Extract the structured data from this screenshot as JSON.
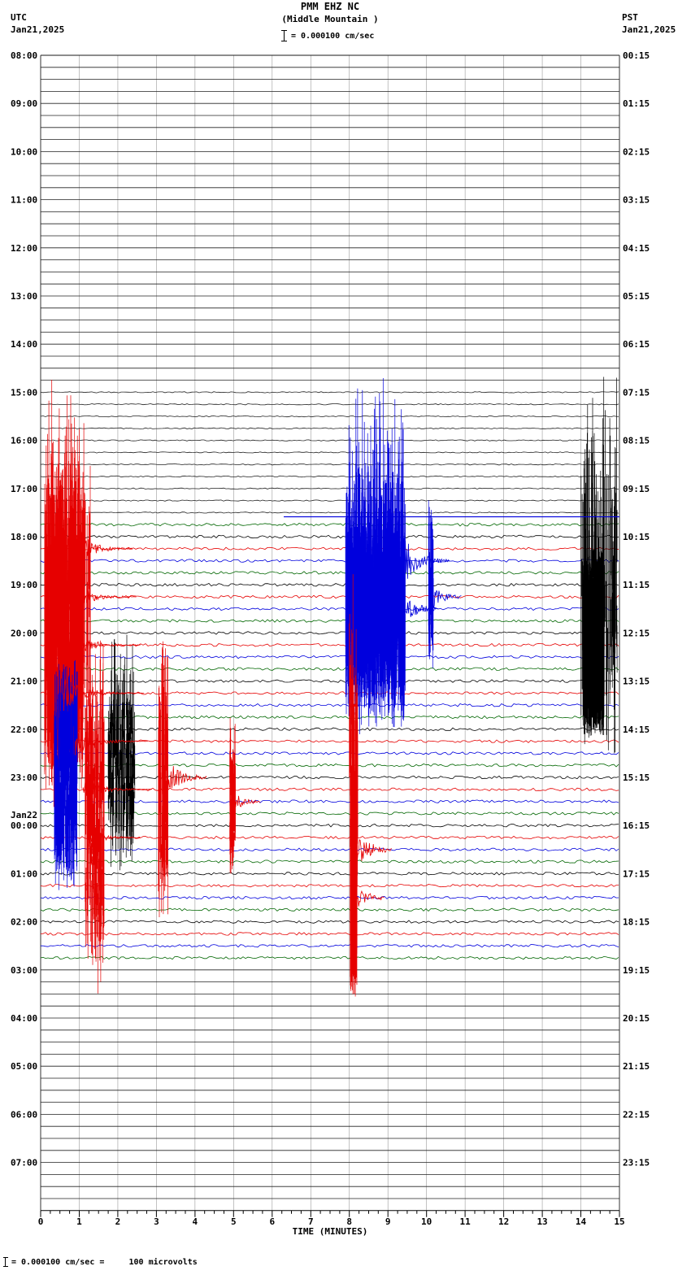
{
  "header": {
    "title": "PMM EHZ NC",
    "subtitle": "(Middle Mountain )",
    "scale_label": "= 0.000100 cm/sec",
    "left_tz": "UTC",
    "left_date": "Jan21,2025",
    "right_tz": "PST",
    "right_date": "Jan21,2025"
  },
  "footer": {
    "xlabel": "TIME (MINUTES)",
    "note": "= 0.000100 cm/sec =     100 microvolts"
  },
  "chart_data": {
    "type": "line",
    "kind": "helicorder-seismogram",
    "station": "PMM EHZ NC",
    "station_name": "Middle Mountain",
    "minutes_per_line": 15,
    "lines_per_hour": 4,
    "total_rows": 96,
    "x_range_minutes": [
      0,
      15
    ],
    "x_ticks": [
      "0",
      "1",
      "2",
      "3",
      "4",
      "5",
      "6",
      "7",
      "8",
      "9",
      "10",
      "11",
      "12",
      "13",
      "14",
      "15"
    ],
    "utc_labels": [
      "08:00",
      "09:00",
      "10:00",
      "11:00",
      "12:00",
      "13:00",
      "14:00",
      "15:00",
      "16:00",
      "17:00",
      "18:00",
      "19:00",
      "20:00",
      "21:00",
      "22:00",
      "23:00",
      "00:00",
      "01:00",
      "02:00",
      "03:00",
      "04:00",
      "05:00",
      "06:00",
      "07:00"
    ],
    "utc_date_change": {
      "index": 16,
      "label": "Jan22"
    },
    "pst_labels": [
      "00:15",
      "01:15",
      "02:15",
      "03:15",
      "04:15",
      "05:15",
      "06:15",
      "07:15",
      "08:15",
      "09:15",
      "10:15",
      "11:15",
      "12:15",
      "13:15",
      "14:15",
      "15:15",
      "16:15",
      "17:15",
      "18:15",
      "19:15",
      "20:15",
      "21:15",
      "22:15",
      "23:15"
    ],
    "trace_colors": [
      "#000000",
      "#e60000",
      "#0000dd",
      "#006600"
    ],
    "quiet_color": "#222222",
    "grid_color": "#999999",
    "colored_rows": [
      39,
      76
    ],
    "noise": [
      {
        "rows": [
          0,
          28
        ],
        "amp": 0.3
      },
      {
        "rows": [
          28,
          39
        ],
        "amp": 0.7
      },
      {
        "rows": [
          39,
          76
        ],
        "amp": 1.7
      },
      {
        "rows": [
          76,
          96
        ],
        "amp": 0.35
      }
    ],
    "events": [
      {
        "name": "red-mainshock-core",
        "type": "burst",
        "color": "#e60000",
        "x": [
          0.1,
          1.1
        ],
        "rows": [
          40,
          57
        ],
        "amp": [
          30,
          130
        ],
        "count": 900,
        "pow": 2
      },
      {
        "name": "red-mainshock-peaks",
        "type": "burst",
        "color": "#e60000",
        "x": [
          0.15,
          1.3
        ],
        "rows": [
          41,
          50
        ],
        "amp": [
          60,
          215
        ],
        "count": 130,
        "pow": 2
      },
      {
        "name": "blue-event-core",
        "type": "burst",
        "color": "#0000dd",
        "x": [
          7.9,
          9.45
        ],
        "rows": [
          43,
          50
        ],
        "amp": [
          40,
          150
        ],
        "count": 900,
        "pow": 2
      },
      {
        "name": "blue-event-peaks",
        "type": "burst",
        "color": "#0000dd",
        "x": [
          7.95,
          9.4
        ],
        "rows": [
          42,
          46
        ],
        "amp": [
          80,
          230
        ],
        "count": 110,
        "pow": 2
      },
      {
        "name": "black-event-core",
        "type": "burst",
        "color": "#000000",
        "x": [
          14.05,
          14.6
        ],
        "rows": [
          47,
          53
        ],
        "amp": [
          40,
          90
        ],
        "count": 800,
        "pow": 1
      },
      {
        "name": "black-event-peaks",
        "type": "burst",
        "color": "#000000",
        "x": [
          14.0,
          14.95
        ],
        "rows": [
          40,
          50
        ],
        "amp": [
          20,
          215
        ],
        "count": 160,
        "pow": 2
      },
      {
        "name": "blue-left-aftershock",
        "type": "burst",
        "color": "#0000dd",
        "x": [
          0.35,
          0.95
        ],
        "rows": [
          55,
          66
        ],
        "amp": [
          15,
          85
        ],
        "count": 420,
        "pow": 1.5
      },
      {
        "name": "red-left-aftershocks",
        "type": "burst",
        "color": "#e60000",
        "x": [
          1.15,
          1.65
        ],
        "rows": [
          56,
          73
        ],
        "amp": [
          15,
          120
        ],
        "count": 260,
        "pow": 2
      },
      {
        "name": "black-aftershocks",
        "type": "burst",
        "color": "#000000",
        "x": [
          1.75,
          2.45
        ],
        "rows": [
          54,
          64
        ],
        "amp": [
          10,
          90
        ],
        "count": 260,
        "pow": 2
      },
      {
        "name": "red-spike-3min",
        "type": "burst",
        "color": "#e60000",
        "x": [
          3.05,
          3.3
        ],
        "rows": [
          56,
          67
        ],
        "amp": [
          10,
          140
        ],
        "count": 110,
        "pow": 2
      },
      {
        "name": "red-spike-5min",
        "type": "burst",
        "color": "#e60000",
        "x": [
          4.9,
          5.05
        ],
        "rows": [
          59,
          66
        ],
        "amp": [
          10,
          70
        ],
        "count": 70,
        "pow": 1.5
      },
      {
        "name": "red-column-8min-sparse",
        "type": "burst",
        "color": "#e60000",
        "x": [
          8.0,
          8.22
        ],
        "rows": [
          52,
          66
        ],
        "amp": [
          20,
          150
        ],
        "count": 80,
        "pow": 2
      },
      {
        "name": "red-column-8min-dense",
        "type": "burst",
        "color": "#e60000",
        "x": [
          8.02,
          8.2
        ],
        "rows": [
          66,
          73
        ],
        "amp": [
          30,
          120
        ],
        "count": 600,
        "pow": 1.5
      },
      {
        "name": "blue-spike-10min",
        "type": "burst",
        "color": "#0000dd",
        "x": [
          10.05,
          10.18
        ],
        "rows": [
          43,
          47
        ],
        "amp": [
          10,
          110
        ],
        "count": 55,
        "pow": 2
      },
      {
        "name": "blue-offset-line",
        "type": "hline",
        "color": "#0000dd",
        "row": 38.35,
        "x": [
          6.3,
          15
        ]
      },
      {
        "name": "red-coda-1",
        "type": "coda",
        "color": "#e60000",
        "row": 41,
        "x": [
          0.5,
          2.4
        ],
        "amp0": 45,
        "k": 2.2
      },
      {
        "name": "red-coda-2",
        "type": "coda",
        "color": "#e60000",
        "row": 45,
        "x": [
          0.5,
          2.5
        ],
        "amp0": 38,
        "k": 2.2
      },
      {
        "name": "red-coda-3",
        "type": "coda",
        "color": "#e60000",
        "row": 49,
        "x": [
          0.55,
          2.6
        ],
        "amp0": 30,
        "k": 2.2
      },
      {
        "name": "red-coda-4",
        "type": "coda",
        "color": "#e60000",
        "row": 53,
        "x": [
          0.6,
          2.7
        ],
        "amp0": 24,
        "k": 2.2
      },
      {
        "name": "red-coda-5",
        "type": "coda",
        "color": "#e60000",
        "row": 57,
        "x": [
          0.9,
          2.8
        ],
        "amp0": 18,
        "k": 2.2
      },
      {
        "name": "red-coda-6",
        "type": "coda",
        "color": "#e60000",
        "row": 61,
        "x": [
          1.1,
          2.9
        ],
        "amp0": 13,
        "k": 2.2
      },
      {
        "name": "red-coda-7",
        "type": "coda",
        "color": "#e60000",
        "row": 65,
        "x": [
          1.2,
          2.6
        ],
        "amp0": 9,
        "k": 2.2
      },
      {
        "name": "blue-coda-1",
        "type": "coda",
        "color": "#0000dd",
        "row": 42,
        "x": [
          9.45,
          10.6
        ],
        "amp0": 26,
        "k": 2.5
      },
      {
        "name": "blue-coda-2",
        "type": "coda",
        "color": "#0000dd",
        "row": 46,
        "x": [
          9.45,
          10.3
        ],
        "amp0": 15,
        "k": 2.5
      },
      {
        "name": "blue-coda-10min",
        "type": "coda",
        "color": "#0000dd",
        "row": 45,
        "x": [
          10.18,
          10.9
        ],
        "amp0": 14,
        "k": 3
      },
      {
        "name": "red-coda-8min-1",
        "type": "coda",
        "color": "#e60000",
        "row": 66,
        "x": [
          8.2,
          9.1
        ],
        "amp0": 20,
        "k": 2.5
      },
      {
        "name": "red-coda-8min-2",
        "type": "coda",
        "color": "#e60000",
        "row": 70,
        "x": [
          8.2,
          8.9
        ],
        "amp0": 12,
        "k": 2.5
      },
      {
        "name": "red-coda-3min",
        "type": "coda",
        "color": "#e60000",
        "row": 60,
        "x": [
          3.3,
          4.3
        ],
        "amp0": 20,
        "k": 2.5
      },
      {
        "name": "red-coda-5min",
        "type": "coda",
        "color": "#e60000",
        "row": 62,
        "x": [
          5.05,
          5.7
        ],
        "amp0": 10,
        "k": 3
      }
    ]
  }
}
